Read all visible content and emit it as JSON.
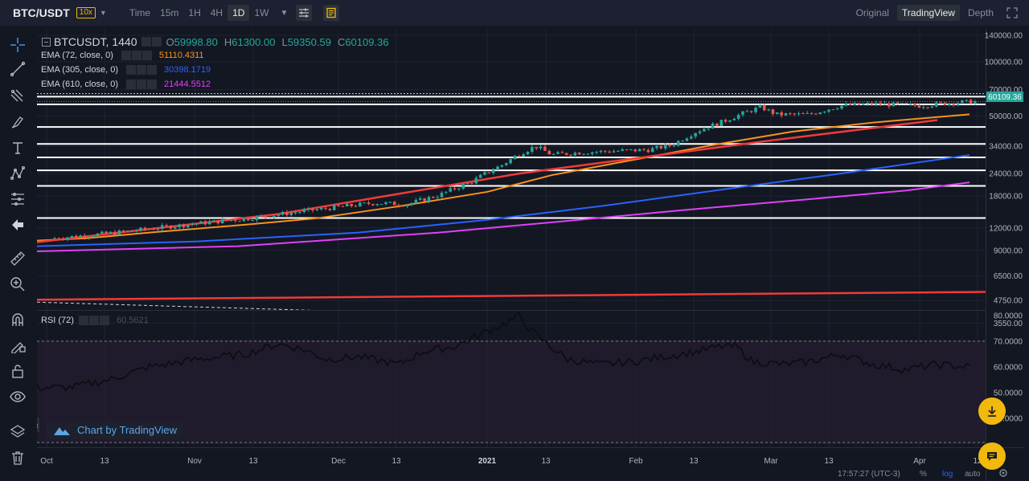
{
  "topbar": {
    "symbol": "BTC/USDT",
    "leverage": "10x",
    "timeframes": [
      "Time",
      "15m",
      "1H",
      "4H",
      "1D",
      "1W"
    ],
    "active_timeframe": "1D",
    "views": [
      "Original",
      "TradingView",
      "Depth"
    ],
    "active_view": "TradingView"
  },
  "legend": {
    "symbol": "BTCUSDT, 1440",
    "o_label": "O",
    "open": "59998.80",
    "h_label": "H",
    "high": "61300.00",
    "l_label": "L",
    "low": "59350.59",
    "c_label": "C",
    "close": "60109.36",
    "ema72_label": "EMA (72, close, 0)",
    "ema72_value": "51110.4311",
    "ema305_label": "EMA (305, close, 0)",
    "ema305_value": "30398.1719",
    "ema610_label": "EMA (610, close, 0)",
    "ema610_value": "21444.5512",
    "rsi_label": "RSI (72)",
    "rsi_value": "60.5621"
  },
  "price_axis": [
    "140000.00",
    "100000.00",
    "70000.00",
    "50000.00",
    "34000.00",
    "24000.00",
    "18000.00",
    "12000.00",
    "9000.00",
    "6500.00",
    "4750.00",
    "3550.00"
  ],
  "last_price_tag": "60109.36",
  "rsi_axis": [
    "80.0000",
    "70.0000",
    "60.0000",
    "50.0000",
    "40.0000"
  ],
  "time_axis": [
    "Oct",
    "13",
    "Nov",
    "13",
    "Dec",
    "13",
    "2021",
    "13",
    "Feb",
    "13",
    "Mar",
    "13",
    "Apr",
    "12"
  ],
  "footer": {
    "clock": "17:57:27 (UTC-3)",
    "percent": "%",
    "log": "log",
    "auto": "auto"
  },
  "badge": "Chart by TradingView",
  "colors": {
    "bg": "#131722",
    "up": "#26a69a",
    "down": "#ef5350",
    "ema72": "#f7931a",
    "ema305": "#2962ff",
    "ema610": "#e040fb",
    "accent": "#f0b90b"
  },
  "chart_data": {
    "type": "candlestick",
    "scale": "log",
    "price_ticks": [
      140000,
      100000,
      70000,
      50000,
      34000,
      24000,
      18000,
      12000,
      9000,
      6500,
      4750,
      3550
    ],
    "rsi_ticks": [
      80,
      70,
      60,
      50,
      40
    ],
    "last": 60109.36,
    "ohlc_last": {
      "open": 59998.8,
      "high": 61300.0,
      "low": 59350.59,
      "close": 60109.36
    },
    "ema72": 51110.4311,
    "ema305": 30398.1719,
    "ema610": 21444.5512,
    "rsi": 60.5621
  }
}
